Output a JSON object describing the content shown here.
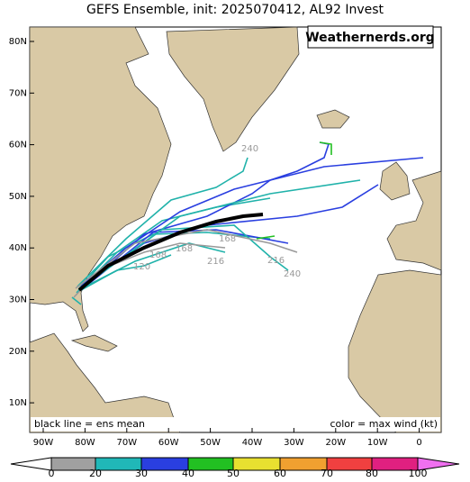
{
  "header": {
    "title": "GEFS Ensemble, init: 2025070412, AL92 Invest"
  },
  "watermark": "Weathernerds.org",
  "map": {
    "lat_labels": [
      "80N",
      "70N",
      "60N",
      "50N",
      "40N",
      "30N",
      "20N",
      "10N"
    ],
    "lon_labels": [
      "90W",
      "80W",
      "70W",
      "60W",
      "50W",
      "40W",
      "30W",
      "20W",
      "10W",
      "0"
    ],
    "track_labels": [
      "240",
      "168",
      "216",
      "216",
      "240",
      "168",
      "168",
      "120"
    ]
  },
  "notes": {
    "left": "black line = ens mean",
    "right": "color = max wind (kt)"
  },
  "colorbar": {
    "labels": [
      "0",
      "20",
      "30",
      "40",
      "50",
      "60",
      "70",
      "80",
      "100"
    ]
  }
}
